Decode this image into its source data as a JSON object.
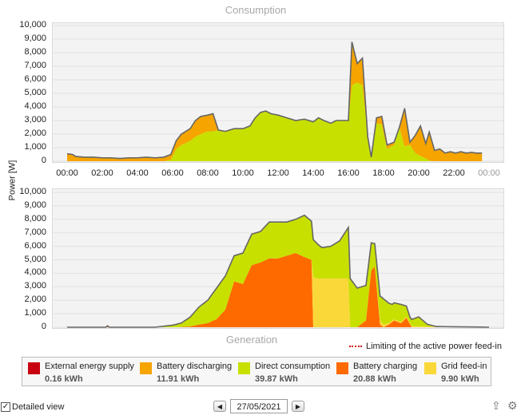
{
  "consumption_chart": {
    "title": "Consumption",
    "y_ticks": [
      "10,000",
      "9,000",
      "8,000",
      "7,000",
      "6,000",
      "5,000",
      "4,000",
      "3,000",
      "2,000",
      "1,000",
      "0"
    ],
    "x_ticks": [
      "00:00",
      "02:00",
      "04:00",
      "06:00",
      "08:00",
      "10:00",
      "12:00",
      "14:00",
      "16:00",
      "18:00",
      "20:00",
      "22:00",
      "00:00"
    ]
  },
  "generation_chart": {
    "title": "Generation",
    "y_ticks": [
      "10,000",
      "9,000",
      "8,000",
      "7,000",
      "6,000",
      "5,000",
      "4,000",
      "3,000",
      "2,000",
      "1,000",
      "0"
    ]
  },
  "y_axis_label": "Power [W]",
  "limit_note": "Limiting of the active power feed-in",
  "legend": [
    {
      "label": "External energy supply",
      "value": "0.16 kWh",
      "color": "#c80010"
    },
    {
      "label": "Battery discharging",
      "value": "11.91 kWh",
      "color": "#f5a400"
    },
    {
      "label": "Direct consumption",
      "value": "39.87 kWh",
      "color": "#c8e000"
    },
    {
      "label": "Battery charging",
      "value": "20.88 kWh",
      "color": "#ff6a00"
    },
    {
      "label": "Grid feed-in",
      "value": "9.90 kWh",
      "color": "#fbd83a"
    }
  ],
  "controls": {
    "detailed_view_label": "Detailed view",
    "date": "27/05/2021",
    "checkbox_checked": true
  },
  "chart_data": [
    {
      "type": "area",
      "title": "Consumption",
      "ylabel": "Power [W]",
      "ylim": [
        0,
        10000
      ],
      "x_unit": "hours",
      "series": [
        {
          "name": "Direct consumption",
          "color": "#c8e000",
          "x": [
            0,
            0.3,
            0.5,
            1.0,
            1.5,
            2.0,
            2.5,
            3.0,
            3.5,
            4.0,
            4.5,
            5.0,
            5.5,
            5.9,
            6.2,
            6.5,
            7.0,
            7.3,
            7.6,
            8.0,
            8.3,
            8.6,
            9.0,
            9.5,
            10.0,
            10.4,
            10.7,
            11.0,
            11.3,
            11.6,
            12.0,
            12.5,
            13.0,
            13.5,
            14.0,
            14.3,
            14.6,
            15.0,
            15.3,
            15.6,
            16.0,
            16.2,
            16.5,
            16.8,
            17.1,
            17.3,
            17.6,
            17.9,
            18.2,
            18.6,
            18.9,
            19.2,
            19.5,
            19.8,
            20.1,
            20.4,
            20.6,
            20.9
          ],
          "y": [
            0,
            0,
            0,
            0,
            0,
            0,
            0,
            0,
            0,
            0,
            0,
            0,
            0,
            100,
            900,
            1200,
            1500,
            1800,
            2000,
            2200,
            2200,
            2300,
            2200,
            2400,
            2400,
            2600,
            3200,
            3600,
            3700,
            3500,
            3400,
            3200,
            3000,
            3100,
            2900,
            3200,
            3000,
            2800,
            3000,
            3000,
            3000,
            5600,
            5800,
            5600,
            1800,
            300,
            2800,
            2700,
            900,
            1200,
            2500,
            1100,
            1200,
            600,
            400,
            200,
            50,
            0
          ]
        },
        {
          "name": "Battery discharging",
          "color": "#f5a400",
          "x": [
            0,
            0.3,
            0.5,
            1.0,
            1.5,
            2.0,
            2.5,
            3.0,
            3.5,
            4.0,
            4.5,
            5.0,
            5.5,
            5.9,
            6.2,
            6.5,
            7.0,
            7.3,
            7.6,
            8.0,
            8.3,
            8.6,
            9.0,
            9.5,
            10.0,
            10.4,
            10.7,
            11.0,
            11.3,
            11.6,
            12.0,
            12.5,
            13.0,
            13.5,
            14.0,
            14.3,
            14.6,
            15.0,
            15.3,
            15.6,
            16.0,
            16.2,
            16.5,
            16.8,
            17.1,
            17.3,
            17.6,
            17.9,
            18.2,
            18.6,
            18.9,
            19.2,
            19.5,
            19.8,
            20.1,
            20.4,
            20.6,
            20.9,
            21.2,
            21.5,
            21.8,
            22.1,
            22.4,
            22.7,
            23.0,
            23.3,
            23.6
          ],
          "y": [
            550,
            500,
            350,
            300,
            300,
            250,
            250,
            200,
            250,
            250,
            300,
            250,
            300,
            400,
            600,
            800,
            900,
            1200,
            1300,
            1200,
            1300,
            0,
            0,
            0,
            0,
            0,
            0,
            0,
            0,
            0,
            0,
            0,
            0,
            0,
            0,
            0,
            0,
            0,
            0,
            0,
            0,
            3200,
            1400,
            2000,
            0,
            0,
            400,
            600,
            300,
            200,
            0,
            2800,
            200,
            1300,
            2200,
            1100,
            2100,
            800,
            900,
            600,
            700,
            600,
            700,
            600,
            650,
            600,
            600
          ]
        }
      ]
    },
    {
      "type": "area",
      "title": "Generation",
      "ylabel": "Power [W]",
      "ylim": [
        0,
        10000
      ],
      "x_unit": "hours",
      "series": [
        {
          "name": "Battery charging",
          "color": "#ff6a00",
          "x": [
            0,
            2.2,
            2.3,
            2.4,
            5.0,
            6.2,
            7.0,
            7.5,
            8.0,
            8.5,
            9.0,
            9.5,
            10.0,
            10.5,
            11.0,
            11.5,
            12.0,
            12.5,
            13.0,
            13.5,
            13.9,
            14.0,
            15.8,
            16.0,
            16.5,
            17.0,
            17.3,
            17.5,
            17.8,
            18.0,
            18.3,
            18.6,
            19.0,
            19.3,
            19.6,
            24
          ],
          "y": [
            0,
            0,
            100,
            0,
            0,
            0,
            50,
            200,
            300,
            600,
            1300,
            3400,
            3200,
            4600,
            4800,
            5100,
            5100,
            5300,
            5500,
            5200,
            5000,
            0,
            0,
            0,
            0,
            500,
            4200,
            4500,
            200,
            0,
            200,
            500,
            300,
            700,
            0,
            0
          ]
        },
        {
          "name": "Grid feed-in",
          "color": "#fbd83a",
          "x": [
            0,
            13.9,
            14.0,
            14.3,
            15.0,
            15.8,
            16.0,
            16.1,
            17.0,
            17.5,
            17.8,
            18.0,
            18.3,
            24
          ],
          "y": [
            0,
            0,
            3700,
            3600,
            3600,
            3600,
            3600,
            0,
            0,
            0,
            300,
            200,
            100,
            0
          ]
        },
        {
          "name": "Direct consumption",
          "color": "#c8e000",
          "x": [
            0,
            5.0,
            6.0,
            6.5,
            7.0,
            7.5,
            8.0,
            8.5,
            9.0,
            9.5,
            10.0,
            10.5,
            11.0,
            11.5,
            12.0,
            12.5,
            13.0,
            13.5,
            14.0,
            14.5,
            15.0,
            15.5,
            16.0,
            16.5,
            17.0,
            17.5,
            18.0,
            18.5,
            19.0,
            19.5,
            20.0,
            20.5,
            21.0,
            21.5,
            22.0,
            23.5
          ],
          "y": [
            0,
            0,
            150,
            300,
            700,
            1300,
            1700,
            2300,
            2500,
            1900,
            2300,
            2300,
            2300,
            2700,
            2700,
            2500,
            2500,
            3100,
            2800,
            2300,
            2400,
            2800,
            3800,
            2900,
            2600,
            1700,
            1900,
            1200,
            1300,
            450,
            700,
            150,
            0,
            0,
            0,
            0
          ]
        }
      ]
    }
  ]
}
